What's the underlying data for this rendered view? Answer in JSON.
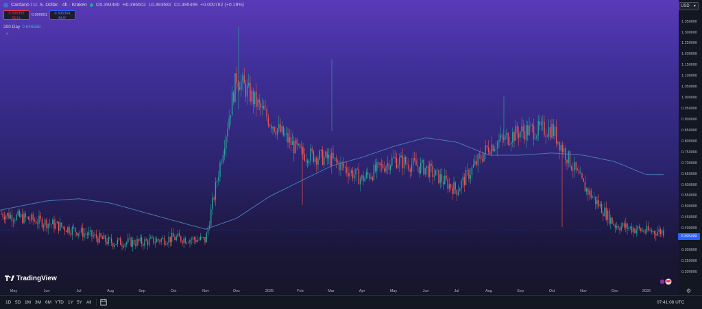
{
  "header": {
    "symbol": "Cardano / U. S. Dollar · 4h · Kraken",
    "open": "O0.394480",
    "high": "H0.396602",
    "low": "L0.393681",
    "close": "C0.395499",
    "change": "+0.000762 (+0.19%)",
    "sell_price": "0.395353",
    "sell_label": "SELL",
    "spread": "0.000001",
    "buy_price": "0.395354",
    "buy_label": "BUY",
    "indicator_name": "200 Day",
    "indicator_value": "0.646588",
    "collapse_glyph": "^"
  },
  "logo_text": "TradingView",
  "currency": "USD",
  "current_price": "0.395499",
  "y_axis": {
    "ticks": [
      "1.350000",
      "1.300000",
      "1.250000",
      "1.200000",
      "1.150000",
      "1.100000",
      "1.050000",
      "1.000000",
      "0.950000",
      "0.900000",
      "0.850000",
      "0.800000",
      "0.750000",
      "0.700000",
      "0.650000",
      "0.600000",
      "0.550000",
      "0.500000",
      "0.450000",
      "0.400000",
      "0.350000",
      "0.300000",
      "0.250000",
      "0.200000"
    ]
  },
  "x_axis": {
    "ticks": [
      "May",
      "Jun",
      "Jul",
      "Aug",
      "Sep",
      "Oct",
      "Nov",
      "Dec",
      "2025",
      "Feb",
      "Mar",
      "Apr",
      "May",
      "Jun",
      "Jul",
      "Aug",
      "Sep",
      "Oct",
      "Nov",
      "Dec",
      "2026"
    ]
  },
  "bottom_bar": {
    "ranges": [
      "1D",
      "5D",
      "1M",
      "3M",
      "6M",
      "YTD",
      "1Y",
      "5Y",
      "All"
    ],
    "clock": "07:41:08 UTC"
  },
  "chart_data": {
    "type": "line",
    "title": "",
    "ylim": [
      0.15,
      1.4
    ],
    "x": [
      "May",
      "Jun",
      "Jul",
      "Aug",
      "Sep",
      "Oct",
      "Nov",
      "Dec",
      "2025",
      "Feb",
      "Mar",
      "Apr",
      "May",
      "Jun",
      "Jul",
      "Aug",
      "Sep",
      "Oct",
      "Nov",
      "Dec",
      "2026"
    ],
    "series": [
      {
        "values": [
          0.46,
          0.43,
          0.39,
          0.34,
          0.34,
          0.36,
          0.35,
          1.1,
          0.9,
          0.75,
          0.72,
          0.63,
          0.72,
          0.68,
          0.58,
          0.78,
          0.85,
          0.86,
          0.6,
          0.42,
          0.39
        ],
        "color": "#4caf50"
      },
      {
        "values": [
          0.5,
          0.53,
          0.54,
          0.52,
          0.48,
          0.44,
          0.4,
          0.45,
          0.55,
          0.62,
          0.69,
          0.73,
          0.78,
          0.82,
          0.8,
          0.74,
          0.74,
          0.75,
          0.74,
          0.71,
          0.65
        ],
        "color": "#4b79b8"
      }
    ]
  },
  "colors": {
    "up": "#26a69a",
    "down": "#ef5350",
    "accent": "#2962ff",
    "sma": "#4b79b8"
  }
}
